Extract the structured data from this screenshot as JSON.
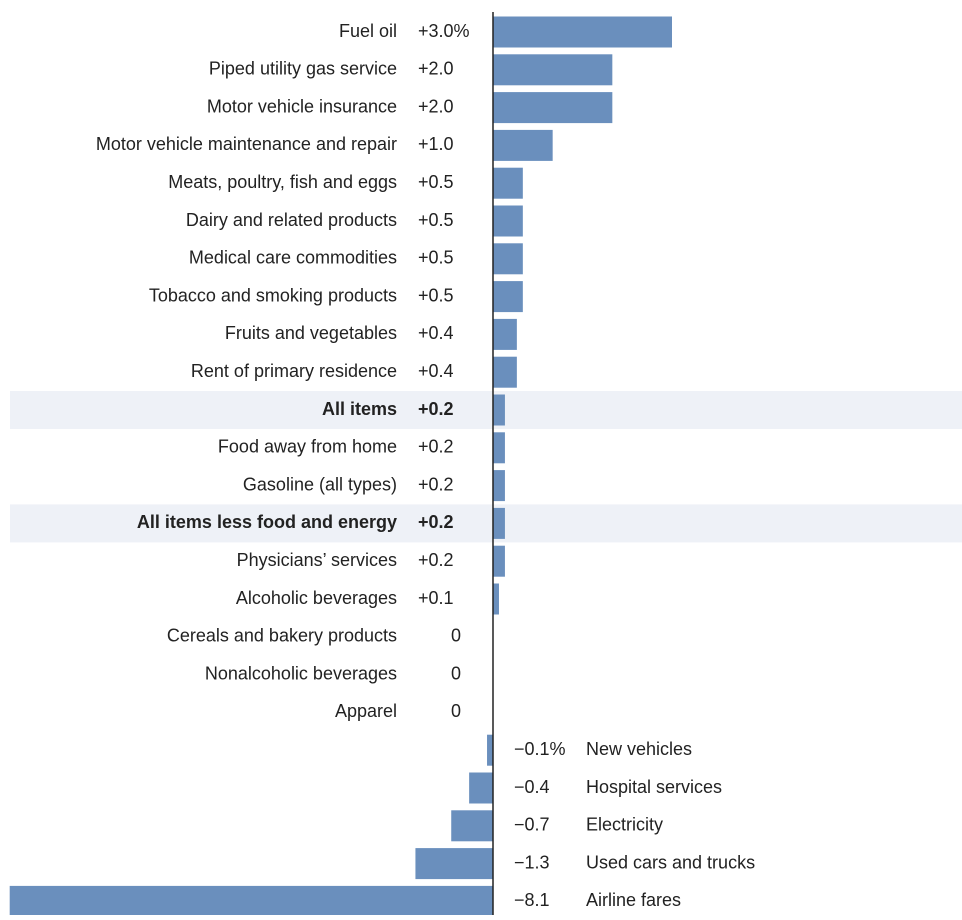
{
  "chart_data": {
    "type": "hbar",
    "color": "#6a8fbd",
    "highlight_color": "#eef1f7",
    "highlighted": [
      10,
      13
    ],
    "categories": [
      "Fuel oil",
      "Piped utility gas service",
      "Motor vehicle insurance",
      "Motor vehicle maintenance and repair",
      "Meats, poultry, fish and eggs",
      "Dairy and related products",
      "Medical care commodities",
      "Tobacco and smoking products",
      "Fruits and vegetables",
      "Rent of primary residence",
      "All items",
      "Food away from home",
      "Gasoline (all types)",
      "All items less food and energy",
      "Physicians’ services",
      "Alcoholic beverages",
      "Cereals and bakery products",
      "Nonalcoholic beverages",
      "Apparel",
      "New vehicles",
      "Hospital services",
      "Electricity",
      "Used cars and trucks",
      "Airline fares"
    ],
    "values": [
      3.0,
      2.0,
      2.0,
      1.0,
      0.5,
      0.5,
      0.5,
      0.5,
      0.4,
      0.4,
      0.2,
      0.2,
      0.2,
      0.2,
      0.2,
      0.1,
      0,
      0,
      0,
      -0.1,
      -0.4,
      -0.7,
      -1.3,
      -8.1
    ],
    "value_labels": [
      "+3.0%",
      "+2.0",
      "+2.0",
      "+1.0",
      "+0.5",
      "+0.5",
      "+0.5",
      "+0.5",
      "+0.4",
      "+0.4",
      "+0.2",
      "+0.2",
      "+0.2",
      "+0.2",
      "+0.2",
      "+0.1",
      "0",
      "0",
      "0",
      "−0.1%",
      "−0.4",
      "−0.7",
      "−1.3",
      "−8.1"
    ]
  }
}
